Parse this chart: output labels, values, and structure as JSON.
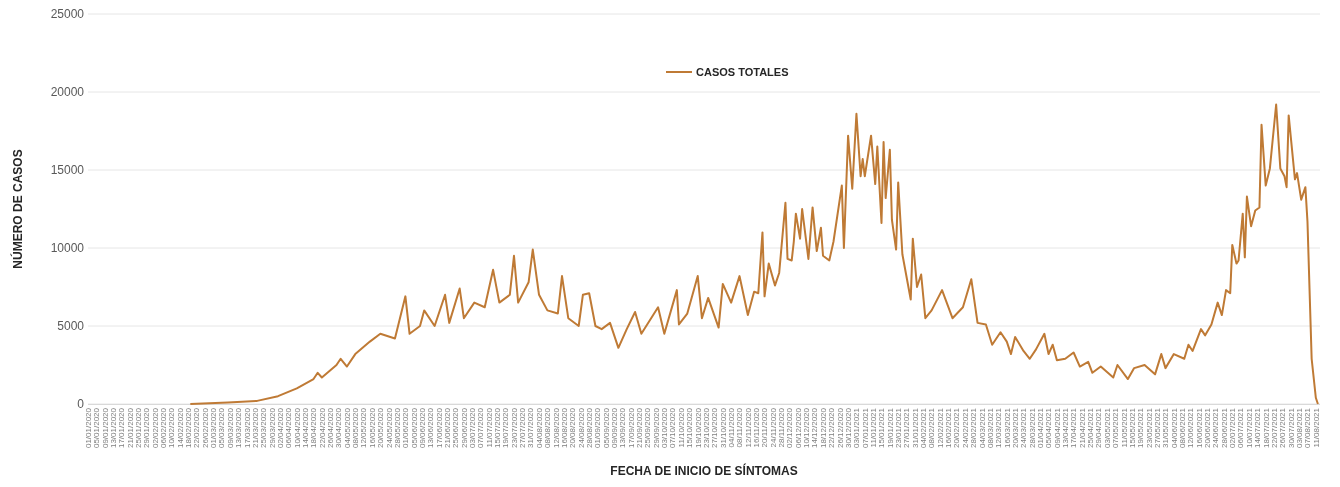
{
  "chart_data": {
    "type": "line",
    "xlabel": "FECHA DE INICIO DE SÍNTOMAS",
    "ylabel": "NÚMERO DE CASOS",
    "legend": "top",
    "grid": "y",
    "line_style": "solid",
    "marker": "none",
    "ylim": [
      0,
      25000
    ],
    "yticks": [
      0,
      5000,
      10000,
      15000,
      20000,
      25000
    ],
    "xlim": [
      "2020-01-01",
      "2021-08-13"
    ],
    "xticks": [
      {
        "value": "2020-01-01",
        "label": "01/01/2020"
      },
      {
        "value": "2020-01-05",
        "label": "05/01/2020"
      },
      {
        "value": "2020-01-09",
        "label": "09/01/2020"
      },
      {
        "value": "2020-01-13",
        "label": "13/01/2020"
      },
      {
        "value": "2020-01-17",
        "label": "17/01/2020"
      },
      {
        "value": "2020-01-21",
        "label": "21/01/2020"
      },
      {
        "value": "2020-01-25",
        "label": "25/01/2020"
      },
      {
        "value": "2020-01-29",
        "label": "29/01/2020"
      },
      {
        "value": "2020-02-02",
        "label": "02/02/2020"
      },
      {
        "value": "2020-02-06",
        "label": "06/02/2020"
      },
      {
        "value": "2020-02-10",
        "label": "10/02/2020"
      },
      {
        "value": "2020-02-14",
        "label": "14/02/2020"
      },
      {
        "value": "2020-02-18",
        "label": "18/02/2020"
      },
      {
        "value": "2020-02-22",
        "label": "22/02/2020"
      },
      {
        "value": "2020-02-26",
        "label": "26/02/2020"
      },
      {
        "value": "2020-03-01",
        "label": "01/03/2020"
      },
      {
        "value": "2020-03-05",
        "label": "05/03/2020"
      },
      {
        "value": "2020-03-09",
        "label": "09/03/2020"
      },
      {
        "value": "2020-03-13",
        "label": "13/03/2020"
      },
      {
        "value": "2020-03-17",
        "label": "17/03/2020"
      },
      {
        "value": "2020-03-21",
        "label": "21/03/2020"
      },
      {
        "value": "2020-03-25",
        "label": "25/03/2020"
      },
      {
        "value": "2020-03-29",
        "label": "29/03/2020"
      },
      {
        "value": "2020-04-02",
        "label": "02/04/2020"
      },
      {
        "value": "2020-04-06",
        "label": "06/04/2020"
      },
      {
        "value": "2020-04-10",
        "label": "10/04/2020"
      },
      {
        "value": "2020-04-14",
        "label": "14/04/2020"
      },
      {
        "value": "2020-04-18",
        "label": "18/04/2020"
      },
      {
        "value": "2020-04-22",
        "label": "22/04/2020"
      },
      {
        "value": "2020-04-26",
        "label": "26/04/2020"
      },
      {
        "value": "2020-04-30",
        "label": "30/04/2020"
      },
      {
        "value": "2020-05-04",
        "label": "04/05/2020"
      },
      {
        "value": "2020-05-08",
        "label": "08/05/2020"
      },
      {
        "value": "2020-05-12",
        "label": "12/05/2020"
      },
      {
        "value": "2020-05-16",
        "label": "16/05/2020"
      },
      {
        "value": "2020-05-20",
        "label": "20/05/2020"
      },
      {
        "value": "2020-05-24",
        "label": "24/05/2020"
      },
      {
        "value": "2020-05-28",
        "label": "28/05/2020"
      },
      {
        "value": "2020-06-01",
        "label": "01/06/2020"
      },
      {
        "value": "2020-06-05",
        "label": "05/06/2020"
      },
      {
        "value": "2020-06-09",
        "label": "09/06/2020"
      },
      {
        "value": "2020-06-13",
        "label": "13/06/2020"
      },
      {
        "value": "2020-06-17",
        "label": "17/06/2020"
      },
      {
        "value": "2020-06-21",
        "label": "21/06/2020"
      },
      {
        "value": "2020-06-25",
        "label": "25/06/2020"
      },
      {
        "value": "2020-06-29",
        "label": "29/06/2020"
      },
      {
        "value": "2020-07-03",
        "label": "03/07/2020"
      },
      {
        "value": "2020-07-07",
        "label": "07/07/2020"
      },
      {
        "value": "2020-07-11",
        "label": "11/07/2020"
      },
      {
        "value": "2020-07-15",
        "label": "15/07/2020"
      },
      {
        "value": "2020-07-19",
        "label": "19/07/2020"
      },
      {
        "value": "2020-07-23",
        "label": "23/07/2020"
      },
      {
        "value": "2020-07-27",
        "label": "27/07/2020"
      },
      {
        "value": "2020-07-31",
        "label": "31/07/2020"
      },
      {
        "value": "2020-08-04",
        "label": "04/08/2020"
      },
      {
        "value": "2020-08-08",
        "label": "08/08/2020"
      },
      {
        "value": "2020-08-12",
        "label": "12/08/2020"
      },
      {
        "value": "2020-08-16",
        "label": "16/08/2020"
      },
      {
        "value": "2020-08-20",
        "label": "20/08/2020"
      },
      {
        "value": "2020-08-24",
        "label": "24/08/2020"
      },
      {
        "value": "2020-08-28",
        "label": "28/08/2020"
      },
      {
        "value": "2020-09-01",
        "label": "01/09/2020"
      },
      {
        "value": "2020-09-05",
        "label": "05/09/2020"
      },
      {
        "value": "2020-09-09",
        "label": "09/09/2020"
      },
      {
        "value": "2020-09-13",
        "label": "13/09/2020"
      },
      {
        "value": "2020-09-17",
        "label": "17/09/2020"
      },
      {
        "value": "2020-09-21",
        "label": "21/09/2020"
      },
      {
        "value": "2020-09-25",
        "label": "25/09/2020"
      },
      {
        "value": "2020-09-29",
        "label": "29/09/2020"
      },
      {
        "value": "2020-10-03",
        "label": "03/10/2020"
      },
      {
        "value": "2020-10-07",
        "label": "07/10/2020"
      },
      {
        "value": "2020-10-11",
        "label": "11/10/2020"
      },
      {
        "value": "2020-10-15",
        "label": "15/10/2020"
      },
      {
        "value": "2020-10-19",
        "label": "19/10/2020"
      },
      {
        "value": "2020-10-23",
        "label": "23/10/2020"
      },
      {
        "value": "2020-10-27",
        "label": "27/10/2020"
      },
      {
        "value": "2020-10-31",
        "label": "31/10/2020"
      },
      {
        "value": "2020-11-04",
        "label": "04/11/2020"
      },
      {
        "value": "2020-11-08",
        "label": "08/11/2020"
      },
      {
        "value": "2020-11-12",
        "label": "12/11/2020"
      },
      {
        "value": "2020-11-16",
        "label": "16/11/2020"
      },
      {
        "value": "2020-11-20",
        "label": "20/11/2020"
      },
      {
        "value": "2020-11-24",
        "label": "24/11/2020"
      },
      {
        "value": "2020-11-28",
        "label": "28/11/2020"
      },
      {
        "value": "2020-12-02",
        "label": "02/12/2020"
      },
      {
        "value": "2020-12-06",
        "label": "06/12/2020"
      },
      {
        "value": "2020-12-10",
        "label": "10/12/2020"
      },
      {
        "value": "2020-12-14",
        "label": "14/12/2020"
      },
      {
        "value": "2020-12-18",
        "label": "18/12/2020"
      },
      {
        "value": "2020-12-22",
        "label": "22/12/2020"
      },
      {
        "value": "2020-12-26",
        "label": "26/12/2020"
      },
      {
        "value": "2020-12-30",
        "label": "30/12/2020"
      },
      {
        "value": "2021-01-03",
        "label": "03/01/2021"
      },
      {
        "value": "2021-01-07",
        "label": "07/01/2021"
      },
      {
        "value": "2021-01-11",
        "label": "11/01/2021"
      },
      {
        "value": "2021-01-15",
        "label": "15/01/2021"
      },
      {
        "value": "2021-01-19",
        "label": "19/01/2021"
      },
      {
        "value": "2021-01-23",
        "label": "23/01/2021"
      },
      {
        "value": "2021-01-27",
        "label": "27/01/2021"
      },
      {
        "value": "2021-01-31",
        "label": "31/01/2021"
      },
      {
        "value": "2021-02-04",
        "label": "04/02/2021"
      },
      {
        "value": "2021-02-08",
        "label": "08/02/2021"
      },
      {
        "value": "2021-02-12",
        "label": "12/02/2021"
      },
      {
        "value": "2021-02-16",
        "label": "16/02/2021"
      },
      {
        "value": "2021-02-20",
        "label": "20/02/2021"
      },
      {
        "value": "2021-02-24",
        "label": "24/02/2021"
      },
      {
        "value": "2021-02-28",
        "label": "28/02/2021"
      },
      {
        "value": "2021-03-04",
        "label": "04/03/2021"
      },
      {
        "value": "2021-03-08",
        "label": "08/03/2021"
      },
      {
        "value": "2021-03-12",
        "label": "12/03/2021"
      },
      {
        "value": "2021-03-16",
        "label": "16/03/2021"
      },
      {
        "value": "2021-03-20",
        "label": "20/03/2021"
      },
      {
        "value": "2021-03-24",
        "label": "24/03/2021"
      },
      {
        "value": "2021-03-28",
        "label": "28/03/2021"
      },
      {
        "value": "2021-04-01",
        "label": "01/04/2021"
      },
      {
        "value": "2021-04-05",
        "label": "05/04/2021"
      },
      {
        "value": "2021-04-09",
        "label": "09/04/2021"
      },
      {
        "value": "2021-04-13",
        "label": "13/04/2021"
      },
      {
        "value": "2021-04-17",
        "label": "17/04/2021"
      },
      {
        "value": "2021-04-21",
        "label": "21/04/2021"
      },
      {
        "value": "2021-04-25",
        "label": "25/04/2021"
      },
      {
        "value": "2021-04-29",
        "label": "29/04/2021"
      },
      {
        "value": "2021-05-03",
        "label": "03/05/2021"
      },
      {
        "value": "2021-05-07",
        "label": "07/05/2021"
      },
      {
        "value": "2021-05-11",
        "label": "11/05/2021"
      },
      {
        "value": "2021-05-15",
        "label": "15/05/2021"
      },
      {
        "value": "2021-05-19",
        "label": "19/05/2021"
      },
      {
        "value": "2021-05-23",
        "label": "23/05/2021"
      },
      {
        "value": "2021-05-27",
        "label": "27/05/2021"
      },
      {
        "value": "2021-05-31",
        "label": "31/05/2021"
      },
      {
        "value": "2021-06-04",
        "label": "04/06/2021"
      },
      {
        "value": "2021-06-08",
        "label": "08/06/2021"
      },
      {
        "value": "2021-06-12",
        "label": "12/06/2021"
      },
      {
        "value": "2021-06-16",
        "label": "16/06/2021"
      },
      {
        "value": "2021-06-20",
        "label": "20/06/2021"
      },
      {
        "value": "2021-06-24",
        "label": "24/06/2021"
      },
      {
        "value": "2021-06-28",
        "label": "28/06/2021"
      },
      {
        "value": "2021-07-02",
        "label": "02/07/2021"
      },
      {
        "value": "2021-07-06",
        "label": "06/07/2021"
      },
      {
        "value": "2021-07-10",
        "label": "10/07/2021"
      },
      {
        "value": "2021-07-14",
        "label": "14/07/2021"
      },
      {
        "value": "2021-07-18",
        "label": "18/07/2021"
      },
      {
        "value": "2021-07-22",
        "label": "22/07/2021"
      },
      {
        "value": "2021-07-26",
        "label": "26/07/2021"
      },
      {
        "value": "2021-07-30",
        "label": "30/07/2021"
      },
      {
        "value": "2021-08-03",
        "label": "03/08/2021"
      },
      {
        "value": "2021-08-07",
        "label": "07/08/2021"
      },
      {
        "value": "2021-08-11",
        "label": "11/08/2021"
      }
    ],
    "series": [
      {
        "name": "CASOS TOTALES",
        "color": "#bf7a35",
        "x": [
          "2020-02-19",
          "2020-03-08",
          "2020-03-22",
          "2020-04-01",
          "2020-04-10",
          "2020-04-18",
          "2020-04-20",
          "2020-04-22",
          "2020-04-29",
          "2020-05-01",
          "2020-05-04",
          "2020-05-08",
          "2020-05-15",
          "2020-05-20",
          "2020-05-27",
          "2020-06-01",
          "2020-06-03",
          "2020-06-08",
          "2020-06-10",
          "2020-06-15",
          "2020-06-20",
          "2020-06-22",
          "2020-06-27",
          "2020-06-29",
          "2020-07-04",
          "2020-07-09",
          "2020-07-13",
          "2020-07-16",
          "2020-07-21",
          "2020-07-23",
          "2020-07-25",
          "2020-07-30",
          "2020-08-01",
          "2020-08-04",
          "2020-08-08",
          "2020-08-13",
          "2020-08-15",
          "2020-08-18",
          "2020-08-23",
          "2020-08-25",
          "2020-08-28",
          "2020-08-31",
          "2020-09-03",
          "2020-09-07",
          "2020-09-11",
          "2020-09-15",
          "2020-09-19",
          "2020-09-22",
          "2020-09-30",
          "2020-10-03",
          "2020-10-09",
          "2020-10-10",
          "2020-10-14",
          "2020-10-19",
          "2020-10-21",
          "2020-10-24",
          "2020-10-29",
          "2020-10-31",
          "2020-11-04",
          "2020-11-08",
          "2020-11-12",
          "2020-11-15",
          "2020-11-17",
          "2020-11-19",
          "2020-11-20",
          "2020-11-22",
          "2020-11-25",
          "2020-11-27",
          "2020-11-30",
          "2020-12-01",
          "2020-12-03",
          "2020-12-04",
          "2020-12-05",
          "2020-12-07",
          "2020-12-08",
          "2020-12-11",
          "2020-12-13",
          "2020-12-15",
          "2020-12-17",
          "2020-12-18",
          "2020-12-21",
          "2020-12-23",
          "2020-12-27",
          "2020-12-28",
          "2020-12-30",
          "2021-01-01",
          "2021-01-03",
          "2021-01-05",
          "2021-01-06",
          "2021-01-07",
          "2021-01-10",
          "2021-01-12",
          "2021-01-13",
          "2021-01-15",
          "2021-01-16",
          "2021-01-17",
          "2021-01-19",
          "2021-01-20",
          "2021-01-22",
          "2021-01-23",
          "2021-01-25",
          "2021-01-29",
          "2021-01-30",
          "2021-02-01",
          "2021-02-03",
          "2021-02-05",
          "2021-02-08",
          "2021-02-13",
          "2021-02-18",
          "2021-02-23",
          "2021-02-27",
          "2021-03-02",
          "2021-03-06",
          "2021-03-09",
          "2021-03-13",
          "2021-03-16",
          "2021-03-18",
          "2021-03-20",
          "2021-03-24",
          "2021-03-27",
          "2021-03-30",
          "2021-04-03",
          "2021-04-05",
          "2021-04-07",
          "2021-04-09",
          "2021-04-13",
          "2021-04-17",
          "2021-04-20",
          "2021-04-24",
          "2021-04-26",
          "2021-04-30",
          "2021-05-06",
          "2021-05-08",
          "2021-05-13",
          "2021-05-16",
          "2021-05-21",
          "2021-05-26",
          "2021-05-29",
          "2021-05-31",
          "2021-06-04",
          "2021-06-09",
          "2021-06-11",
          "2021-06-13",
          "2021-06-17",
          "2021-06-19",
          "2021-06-22",
          "2021-06-25",
          "2021-06-27",
          "2021-06-29",
          "2021-07-01",
          "2021-07-02",
          "2021-07-04",
          "2021-07-05",
          "2021-07-07",
          "2021-07-08",
          "2021-07-09",
          "2021-07-11",
          "2021-07-13",
          "2021-07-15",
          "2021-07-16",
          "2021-07-18",
          "2021-07-20",
          "2021-07-23",
          "2021-07-25",
          "2021-07-27",
          "2021-07-28",
          "2021-07-29",
          "2021-08-01",
          "2021-08-02",
          "2021-08-04",
          "2021-08-06",
          "2021-08-07",
          "2021-08-09",
          "2021-08-11",
          "2021-08-12"
        ],
        "values": [
          0,
          100,
          200,
          500,
          1000,
          1600,
          2000,
          1700,
          2500,
          2900,
          2400,
          3200,
          4000,
          4500,
          4200,
          6900,
          4500,
          5000,
          6000,
          5000,
          7000,
          5200,
          7400,
          5500,
          6500,
          6200,
          8600,
          6500,
          7000,
          9500,
          6500,
          7800,
          9900,
          7000,
          6000,
          5800,
          8200,
          5500,
          5000,
          7000,
          7100,
          5000,
          4800,
          5200,
          3600,
          4800,
          5900,
          4500,
          6200,
          4500,
          7300,
          5100,
          5800,
          8200,
          5500,
          6800,
          4900,
          7700,
          6500,
          8200,
          5700,
          7200,
          7100,
          11000,
          6900,
          9000,
          7600,
          8400,
          12900,
          9300,
          9200,
          10400,
          12200,
          10600,
          12500,
          9300,
          12600,
          9800,
          11300,
          9500,
          9200,
          10400,
          14000,
          10000,
          17200,
          13800,
          18600,
          14600,
          15700,
          14600,
          17200,
          14100,
          16500,
          11600,
          16800,
          13200,
          16300,
          11800,
          9900,
          14200,
          9600,
          6700,
          10600,
          7500,
          8300,
          5500,
          6000,
          7300,
          5500,
          6200,
          8000,
          5200,
          5100,
          3800,
          4600,
          4000,
          3200,
          4300,
          3400,
          2900,
          3500,
          4500,
          3200,
          3800,
          2800,
          2900,
          3300,
          2400,
          2700,
          2000,
          2400,
          1700,
          2500,
          1600,
          2300,
          2500,
          1900,
          3200,
          2300,
          3200,
          2900,
          3800,
          3400,
          4800,
          4400,
          5100,
          6500,
          5700,
          7300,
          7100,
          10200,
          9000,
          9200,
          12200,
          9400,
          13300,
          11400,
          12400,
          12600,
          17900,
          14000,
          15100,
          19200,
          15100,
          14600,
          13900,
          18500,
          14400,
          14800,
          13100,
          13900,
          11700,
          2900,
          400,
          0
        ]
      }
    ]
  }
}
